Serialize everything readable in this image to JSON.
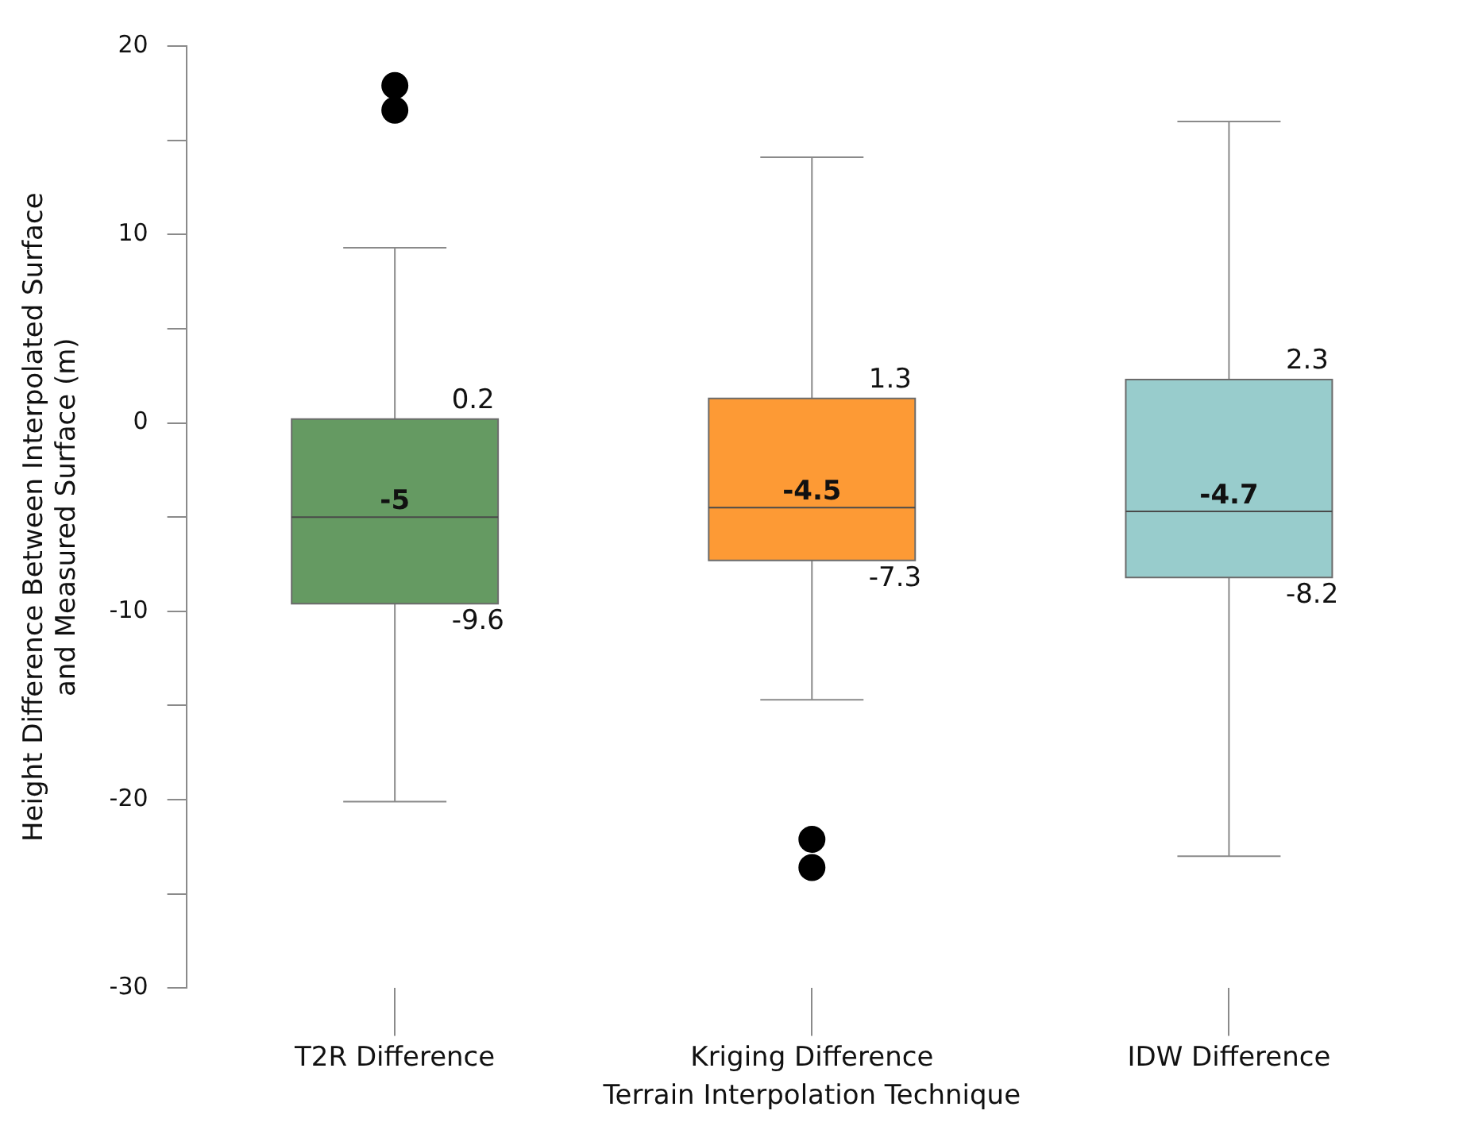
{
  "chart_data": {
    "type": "box",
    "xlabel": "Terrain Interpolation Technique",
    "ylabel": "Height Difference Between Interpolated Surface and Measured Surface (m)",
    "categories": [
      "T2R Difference",
      "Kriging Difference",
      "IDW Difference"
    ],
    "colors": [
      "#659a62",
      "#fd9a35",
      "#98cccc"
    ],
    "boxes": [
      {
        "low": -20.1,
        "q1": -9.6,
        "median": -5,
        "q3": 0.2,
        "high": 9.3,
        "outliers": [
          17.9,
          16.6
        ]
      },
      {
        "low": -14.7,
        "q1": -7.3,
        "median": -4.5,
        "q3": 1.3,
        "high": 14.1,
        "outliers": [
          -22.1,
          -23.6
        ]
      },
      {
        "low": -23,
        "q1": -8.2,
        "median": -4.7,
        "q3": 2.3,
        "high": 16
      }
    ],
    "annotations": [
      {
        "text": "-5",
        "x": "T2R Difference",
        "y": -5
      },
      {
        "text": "0.2",
        "x": "T2R Difference",
        "y": 0.2
      },
      {
        "text": "-9.6",
        "x": "T2R Difference",
        "y": -9.6
      },
      {
        "text": "-4.5",
        "x": "Kriging Difference",
        "y": -4.5
      },
      {
        "text": "1.3",
        "x": "Kriging Difference",
        "y": 1.3
      },
      {
        "text": "-7.3",
        "x": "Kriging Difference",
        "y": -7.3
      },
      {
        "text": "-4.7",
        "x": "IDW Difference",
        "y": -4.7
      },
      {
        "text": "2.3",
        "x": "IDW Difference",
        "y": 2.3
      },
      {
        "text": "-8.2",
        "x": "IDW Difference",
        "y": -8.2
      }
    ],
    "ylim": [
      -30,
      20
    ],
    "yticks": [
      -30,
      {
        "value": -25,
        "label": null
      },
      -20,
      {
        "value": -15,
        "label": null
      },
      -10,
      {
        "value": -5,
        "label": null
      },
      0,
      {
        "value": 5,
        "label": null
      },
      10,
      {
        "value": 15,
        "label": null
      },
      20
    ],
    "grid": false,
    "legend": false,
    "marker": "circle"
  }
}
